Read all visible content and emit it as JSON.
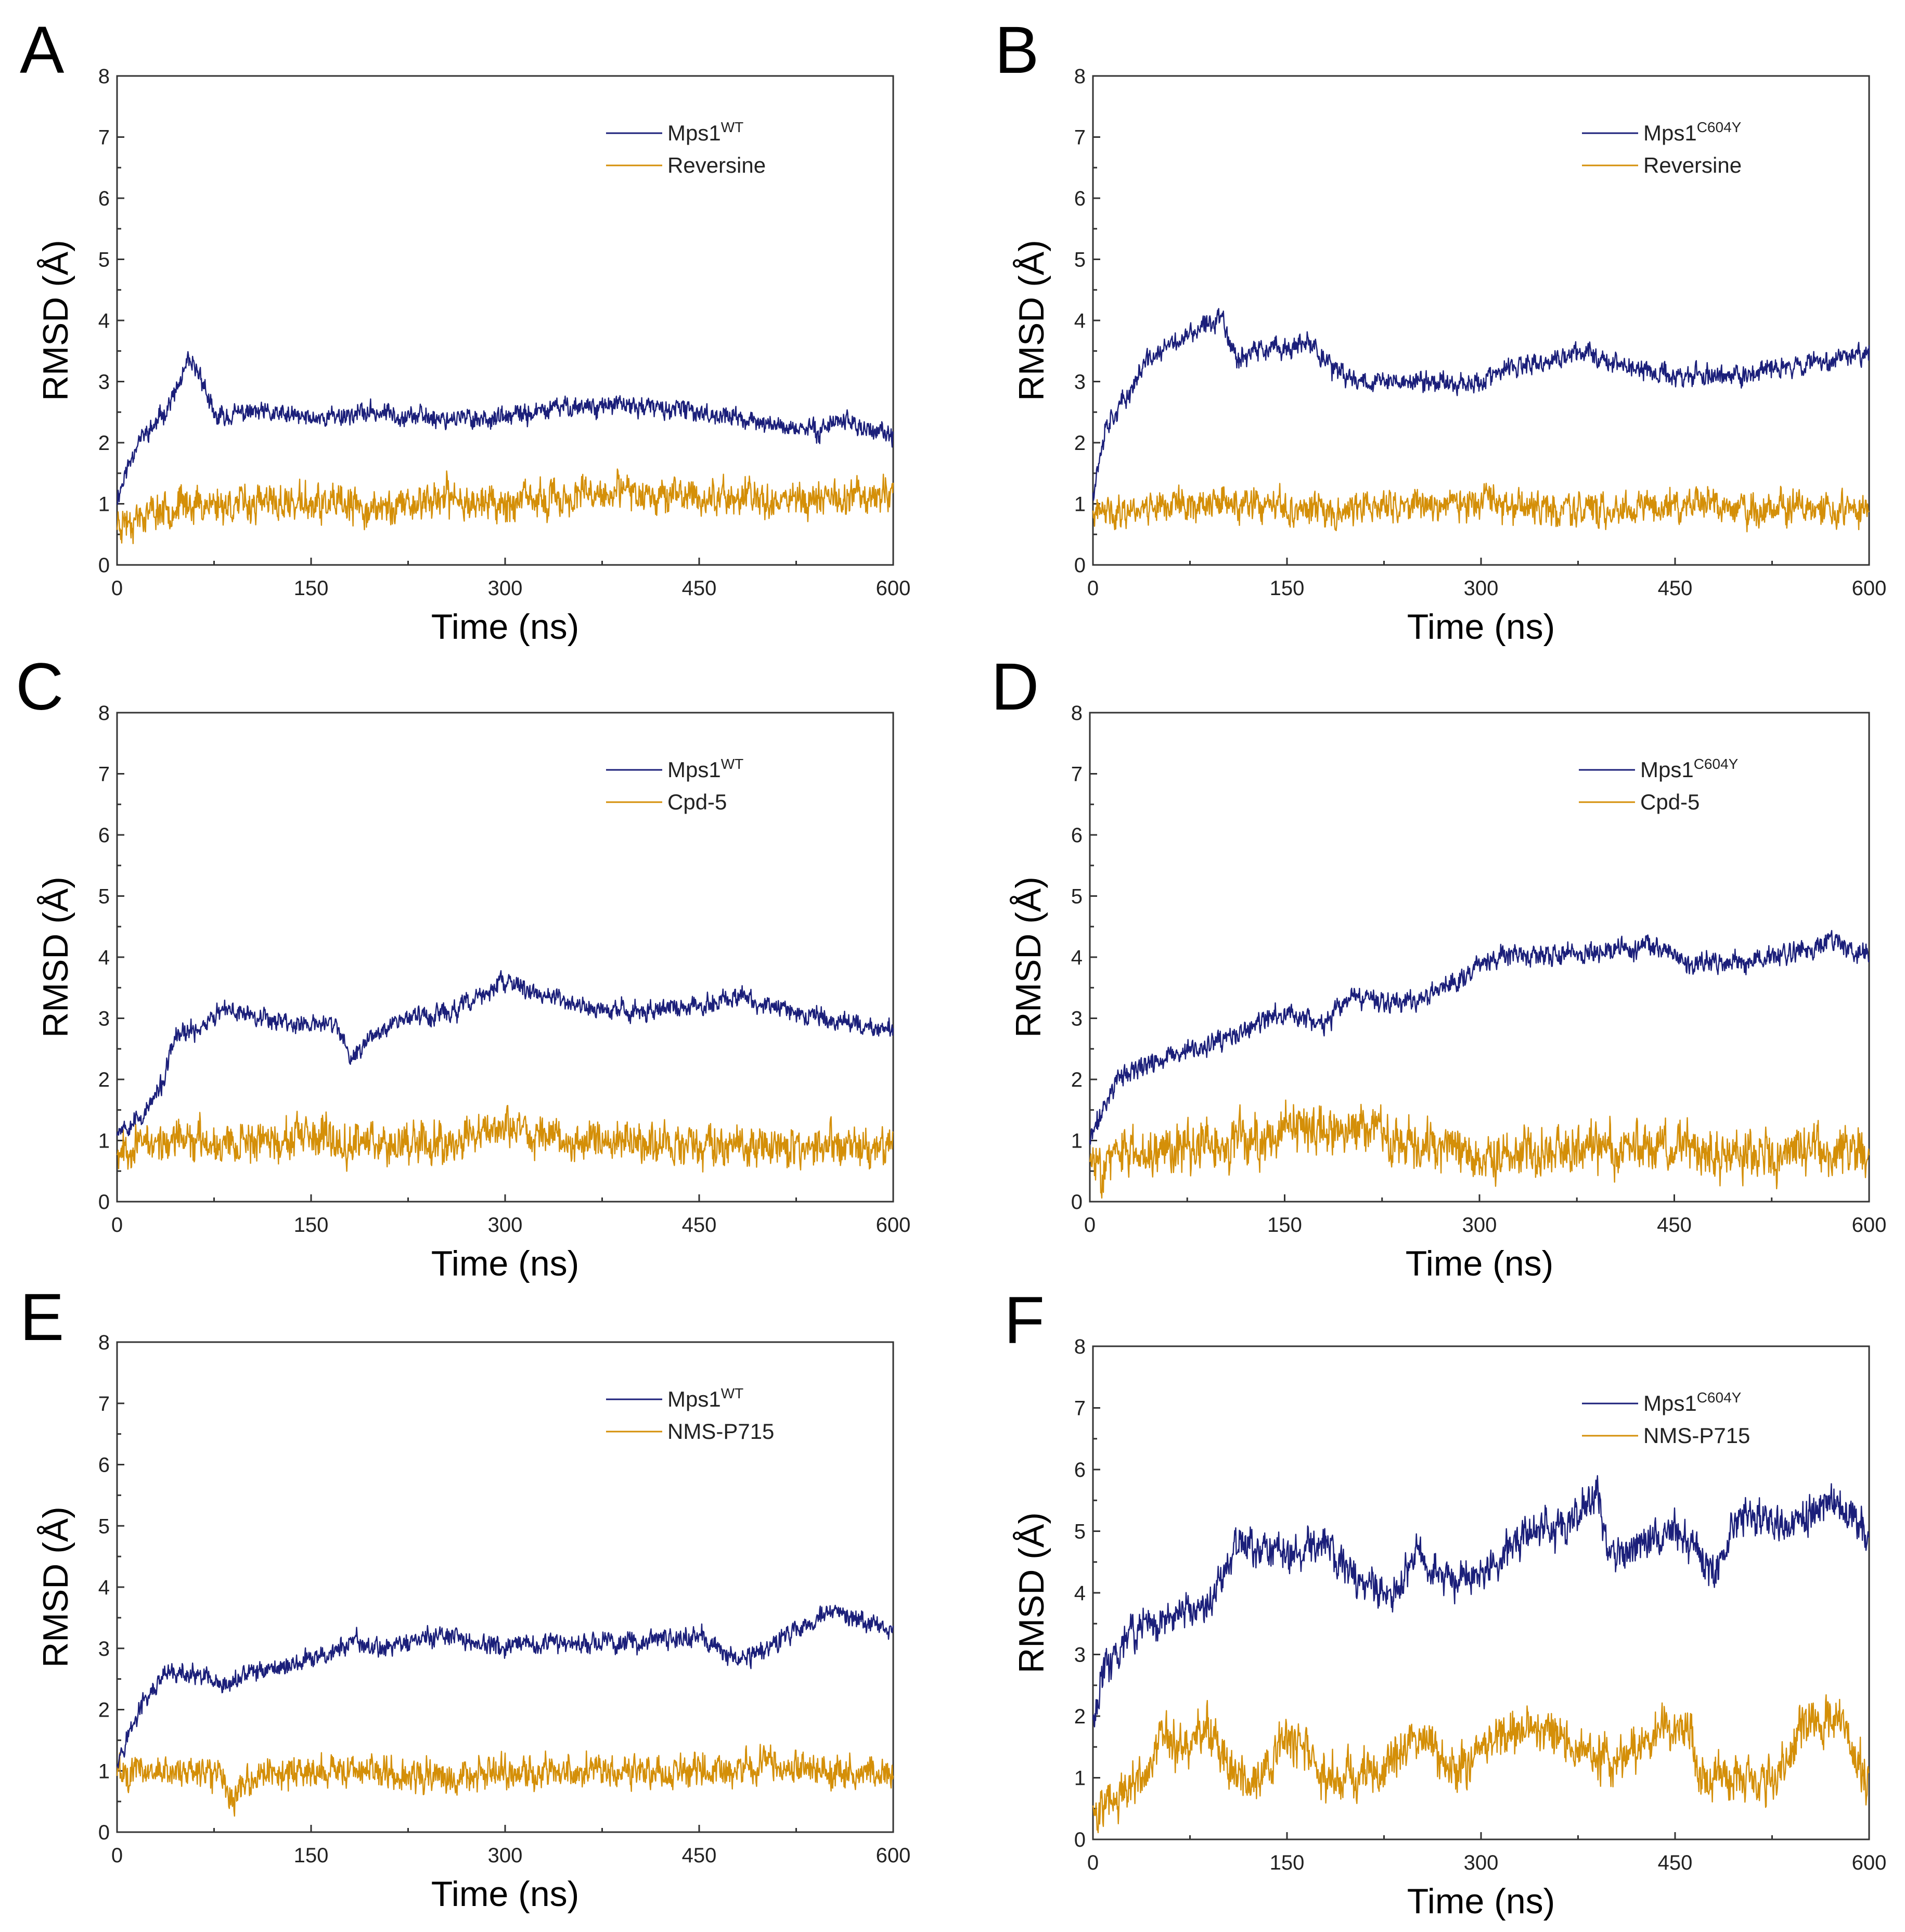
{
  "figure": {
    "colors": {
      "protein": "#1b1f7a",
      "ligand": "#d48f08"
    }
  },
  "chart_data": [
    {
      "panel": "A",
      "type": "line",
      "xlabel": "Time (ns)",
      "ylabel": "RMSD (Å)",
      "xlim": [
        0,
        600
      ],
      "ylim": [
        0,
        8
      ],
      "xticks": [
        "0",
        "150",
        "300",
        "450",
        "600"
      ],
      "yticks": [
        "0",
        "1",
        "2",
        "3",
        "4",
        "5",
        "6",
        "7",
        "8"
      ],
      "series": [
        {
          "name": "Mps1",
          "sup": "WT",
          "role": "protein",
          "noise": 0.12,
          "seed": 11,
          "x": [
            0,
            15,
            30,
            45,
            55,
            65,
            75,
            100,
            150,
            200,
            250,
            300,
            350,
            400,
            450,
            480,
            500,
            540,
            560,
            580,
            600
          ],
          "values": [
            1.1,
            2.0,
            2.3,
            2.8,
            3.3,
            3.1,
            2.4,
            2.5,
            2.4,
            2.5,
            2.4,
            2.4,
            2.6,
            2.6,
            2.5,
            2.4,
            2.3,
            2.2,
            2.4,
            2.2,
            2.1
          ]
        },
        {
          "name": "Reversine",
          "role": "ligand",
          "noise": 0.22,
          "seed": 23,
          "x": [
            0,
            50,
            100,
            150,
            200,
            250,
            300,
            350,
            400,
            450,
            500,
            550,
            600
          ],
          "values": [
            0.7,
            1.0,
            1.0,
            1.0,
            0.9,
            1.1,
            1.0,
            1.1,
            1.2,
            1.1,
            1.1,
            1.1,
            1.2
          ]
        }
      ]
    },
    {
      "panel": "B",
      "type": "line",
      "xlabel": "Time (ns)",
      "ylabel": "RMSD (Å)",
      "xlim": [
        0,
        600
      ],
      "ylim": [
        0,
        8
      ],
      "xticks": [
        "0",
        "150",
        "300",
        "450",
        "600"
      ],
      "yticks": [
        "0",
        "1",
        "2",
        "3",
        "4",
        "5",
        "6",
        "7",
        "8"
      ],
      "series": [
        {
          "name": "Mps1",
          "sup": "C604Y",
          "role": "protein",
          "noise": 0.13,
          "seed": 37,
          "x": [
            0,
            10,
            25,
            40,
            60,
            80,
            100,
            110,
            130,
            170,
            190,
            220,
            260,
            300,
            320,
            350,
            380,
            420,
            450,
            500,
            550,
            600
          ],
          "values": [
            1.2,
            2.3,
            2.7,
            3.3,
            3.6,
            3.8,
            4.1,
            3.4,
            3.5,
            3.6,
            3.1,
            3.0,
            3.0,
            3.0,
            3.2,
            3.3,
            3.5,
            3.2,
            3.1,
            3.1,
            3.3,
            3.5
          ]
        },
        {
          "name": "Reversine",
          "role": "ligand",
          "noise": 0.2,
          "seed": 41,
          "x": [
            0,
            50,
            100,
            150,
            200,
            250,
            300,
            350,
            400,
            450,
            500,
            550,
            600
          ],
          "values": [
            0.8,
            1.0,
            1.0,
            0.9,
            0.9,
            1.0,
            1.0,
            0.9,
            0.9,
            1.0,
            0.9,
            0.9,
            0.9
          ]
        }
      ]
    },
    {
      "panel": "C",
      "type": "line",
      "xlabel": "Time (ns)",
      "ylabel": "RMSD (Å)",
      "xlim": [
        0,
        600
      ],
      "ylim": [
        0,
        8
      ],
      "xticks": [
        "0",
        "150",
        "300",
        "450",
        "600"
      ],
      "yticks": [
        "0",
        "1",
        "2",
        "3",
        "4",
        "5",
        "6",
        "7",
        "8"
      ],
      "series": [
        {
          "name": "Mps1",
          "sup": "WT",
          "role": "protein",
          "noise": 0.12,
          "seed": 53,
          "x": [
            0,
            20,
            35,
            45,
            60,
            80,
            100,
            140,
            170,
            180,
            200,
            220,
            260,
            300,
            340,
            380,
            450,
            480,
            500,
            550,
            600
          ],
          "values": [
            1.2,
            1.4,
            1.9,
            2.7,
            2.8,
            3.1,
            3.1,
            2.9,
            2.9,
            2.3,
            2.8,
            3.0,
            3.1,
            3.6,
            3.3,
            3.1,
            3.2,
            3.4,
            3.2,
            3.0,
            2.8
          ]
        },
        {
          "name": "Cpd-5",
          "role": "ligand",
          "noise": 0.24,
          "seed": 67,
          "x": [
            0,
            50,
            100,
            150,
            200,
            250,
            300,
            350,
            400,
            450,
            500,
            550,
            600
          ],
          "values": [
            0.9,
            1.0,
            1.0,
            1.0,
            1.0,
            1.0,
            1.2,
            1.0,
            1.0,
            0.9,
            0.9,
            0.9,
            0.9
          ]
        }
      ]
    },
    {
      "panel": "D",
      "type": "line",
      "xlabel": "Time (ns)",
      "ylabel": "RMSD (Å)",
      "xlim": [
        0,
        600
      ],
      "ylim": [
        0,
        8
      ],
      "xticks": [
        "0",
        "150",
        "300",
        "450",
        "600"
      ],
      "yticks": [
        "0",
        "1",
        "2",
        "3",
        "4",
        "5",
        "6",
        "7",
        "8"
      ],
      "series": [
        {
          "name": "Mps1",
          "sup": "C604Y",
          "role": "protein",
          "noise": 0.13,
          "seed": 71,
          "x": [
            0,
            20,
            50,
            100,
            150,
            180,
            200,
            250,
            280,
            300,
            320,
            350,
            400,
            430,
            460,
            500,
            550,
            570,
            600
          ],
          "values": [
            1.0,
            2.0,
            2.3,
            2.6,
            3.1,
            2.9,
            3.3,
            3.3,
            3.6,
            3.9,
            4.0,
            4.0,
            4.1,
            4.2,
            3.9,
            3.9,
            4.1,
            4.3,
            4.0
          ]
        },
        {
          "name": "Cpd-5",
          "role": "ligand",
          "noise": 0.3,
          "seed": 83,
          "x": [
            0,
            50,
            100,
            150,
            200,
            250,
            300,
            350,
            400,
            450,
            500,
            550,
            600
          ],
          "values": [
            0.6,
            0.9,
            0.9,
            1.1,
            1.2,
            1.0,
            0.8,
            0.8,
            0.9,
            0.9,
            0.8,
            0.8,
            0.8
          ]
        }
      ]
    },
    {
      "panel": "E",
      "type": "line",
      "xlabel": "Time (ns)",
      "ylabel": "RMSD (Å)",
      "xlim": [
        0,
        600
      ],
      "ylim": [
        0,
        8
      ],
      "xticks": [
        "0",
        "150",
        "300",
        "450",
        "600"
      ],
      "yticks": [
        "0",
        "1",
        "2",
        "3",
        "4",
        "5",
        "6",
        "7",
        "8"
      ],
      "series": [
        {
          "name": "Mps1",
          "sup": "WT",
          "role": "protein",
          "noise": 0.12,
          "seed": 97,
          "x": [
            0,
            20,
            40,
            70,
            80,
            100,
            150,
            185,
            200,
            250,
            300,
            350,
            400,
            450,
            480,
            500,
            550,
            580,
            600
          ],
          "values": [
            1.2,
            2.1,
            2.6,
            2.5,
            2.3,
            2.6,
            2.8,
            3.1,
            3.0,
            3.2,
            3.0,
            3.1,
            3.1,
            3.2,
            2.8,
            3.0,
            3.6,
            3.4,
            3.3
          ]
        },
        {
          "name": "NMS-P715",
          "role": "ligand",
          "noise": 0.2,
          "seed": 101,
          "x": [
            0,
            50,
            80,
            90,
            100,
            150,
            200,
            250,
            300,
            350,
            400,
            450,
            500,
            550,
            600
          ],
          "values": [
            1.0,
            1.0,
            1.0,
            0.5,
            0.9,
            1.0,
            1.0,
            0.9,
            1.0,
            1.0,
            1.0,
            1.0,
            1.1,
            1.0,
            1.0
          ]
        }
      ]
    },
    {
      "panel": "F",
      "type": "line",
      "xlabel": "Time (ns)",
      "ylabel": "RMSD (Å)",
      "xlim": [
        0,
        600
      ],
      "ylim": [
        0,
        8
      ],
      "xticks": [
        "0",
        "150",
        "300",
        "450",
        "600"
      ],
      "yticks": [
        "0",
        "1",
        "2",
        "3",
        "4",
        "5",
        "6",
        "7",
        "8"
      ],
      "series": [
        {
          "name": "Mps1",
          "sup": "C604Y",
          "role": "protein",
          "noise": 0.22,
          "seed": 113,
          "x": [
            0,
            10,
            30,
            60,
            90,
            100,
            110,
            150,
            180,
            200,
            230,
            250,
            280,
            300,
            330,
            370,
            390,
            400,
            420,
            450,
            480,
            500,
            540,
            570,
            600
          ],
          "values": [
            2.0,
            2.8,
            3.4,
            3.6,
            3.8,
            4.3,
            4.8,
            4.6,
            4.8,
            4.3,
            3.9,
            4.6,
            4.2,
            4.3,
            4.9,
            5.2,
            5.6,
            4.6,
            4.8,
            5.0,
            4.3,
            5.3,
            5.1,
            5.5,
            5.0
          ]
        },
        {
          "name": "NMS-P715",
          "role": "ligand",
          "noise": 0.28,
          "seed": 127,
          "x": [
            0,
            40,
            50,
            70,
            90,
            110,
            130,
            150,
            180,
            220,
            250,
            280,
            330,
            350,
            380,
            400,
            440,
            460,
            470,
            530,
            550,
            580,
            600
          ],
          "values": [
            0.5,
            1.0,
            1.6,
            1.5,
            1.8,
            1.0,
            1.0,
            1.7,
            1.0,
            1.0,
            1.7,
            1.2,
            1.8,
            1.8,
            1.4,
            1.2,
            1.7,
            1.8,
            1.0,
            1.0,
            1.9,
            1.9,
            0.8
          ]
        }
      ]
    }
  ]
}
